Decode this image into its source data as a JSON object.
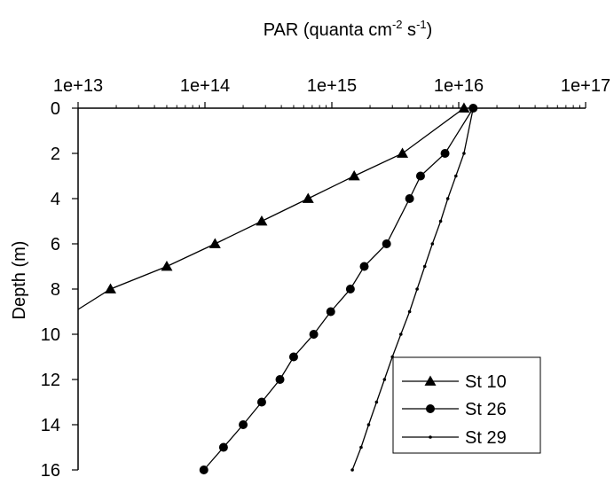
{
  "chart_data": {
    "type": "line",
    "title": "",
    "xlabel": {
      "prefix": "PAR (quanta cm",
      "sup1": "-2",
      "middle": " s",
      "sup2": "-1",
      "suffix": ")"
    },
    "ylabel": "Depth (m)",
    "x_scale": "log",
    "x_axis_position": "top",
    "y_inverted": true,
    "xlim": [
      10000000000000.0,
      1e+17
    ],
    "ylim": [
      0,
      16
    ],
    "x_ticks": [
      10000000000000.0,
      100000000000000.0,
      1000000000000000.0,
      1e+16,
      1e+17
    ],
    "x_tick_labels": [
      "1e+13",
      "1e+14",
      "1e+15",
      "1e+16",
      "1e+17"
    ],
    "y_ticks": [
      0,
      2,
      4,
      6,
      8,
      10,
      12,
      14,
      16
    ],
    "y_tick_labels": [
      "0",
      "2",
      "4",
      "6",
      "8",
      "10",
      "12",
      "14",
      "16"
    ],
    "grid": false,
    "legend_position": "bottom-right",
    "series": [
      {
        "name": "St 10",
        "marker": "triangle",
        "points": [
          {
            "x": 1.1e+16,
            "y": 0
          },
          {
            "x": 3600000000000000.0,
            "y": 2
          },
          {
            "x": 1500000000000000.0,
            "y": 3
          },
          {
            "x": 650000000000000.0,
            "y": 4
          },
          {
            "x": 280000000000000.0,
            "y": 5
          },
          {
            "x": 120000000000000.0,
            "y": 6
          },
          {
            "x": 50000000000000.0,
            "y": 7
          },
          {
            "x": 18000000000000.0,
            "y": 8
          },
          {
            "x": 10000000000000.0,
            "y": 8.9
          }
        ],
        "last_point_marker": false
      },
      {
        "name": "St 26",
        "marker": "circle",
        "points": [
          {
            "x": 1.3e+16,
            "y": 0
          },
          {
            "x": 7800000000000000.0,
            "y": 2
          },
          {
            "x": 5000000000000000.0,
            "y": 3
          },
          {
            "x": 4100000000000000.0,
            "y": 4
          },
          {
            "x": 2700000000000000.0,
            "y": 6
          },
          {
            "x": 1800000000000000.0,
            "y": 7
          },
          {
            "x": 1400000000000000.0,
            "y": 8
          },
          {
            "x": 980000000000000.0,
            "y": 9
          },
          {
            "x": 720000000000000.0,
            "y": 10
          },
          {
            "x": 500000000000000.0,
            "y": 11
          },
          {
            "x": 390000000000000.0,
            "y": 12
          },
          {
            "x": 280000000000000.0,
            "y": 13
          },
          {
            "x": 200000000000000.0,
            "y": 14
          },
          {
            "x": 140000000000000.0,
            "y": 15
          },
          {
            "x": 98000000000000.0,
            "y": 16
          }
        ],
        "last_point_marker": true
      },
      {
        "name": "St 29",
        "marker": "small-dot",
        "points": [
          {
            "x": 1.3e+16,
            "y": 0
          },
          {
            "x": 1.1e+16,
            "y": 2
          },
          {
            "x": 9500000000000000.0,
            "y": 3
          },
          {
            "x": 8200000000000000.0,
            "y": 4
          },
          {
            "x": 7200000000000000.0,
            "y": 5
          },
          {
            "x": 6200000000000000.0,
            "y": 6
          },
          {
            "x": 5400000000000000.0,
            "y": 7
          },
          {
            "x": 4700000000000000.0,
            "y": 8
          },
          {
            "x": 4100000000000000.0,
            "y": 9
          },
          {
            "x": 3500000000000000.0,
            "y": 10
          },
          {
            "x": 3000000000000000.0,
            "y": 11
          },
          {
            "x": 2600000000000000.0,
            "y": 12
          },
          {
            "x": 2250000000000000.0,
            "y": 13
          },
          {
            "x": 1950000000000000.0,
            "y": 14
          },
          {
            "x": 1700000000000000.0,
            "y": 15
          },
          {
            "x": 1450000000000000.0,
            "y": 16
          }
        ],
        "last_point_marker": true
      }
    ]
  }
}
